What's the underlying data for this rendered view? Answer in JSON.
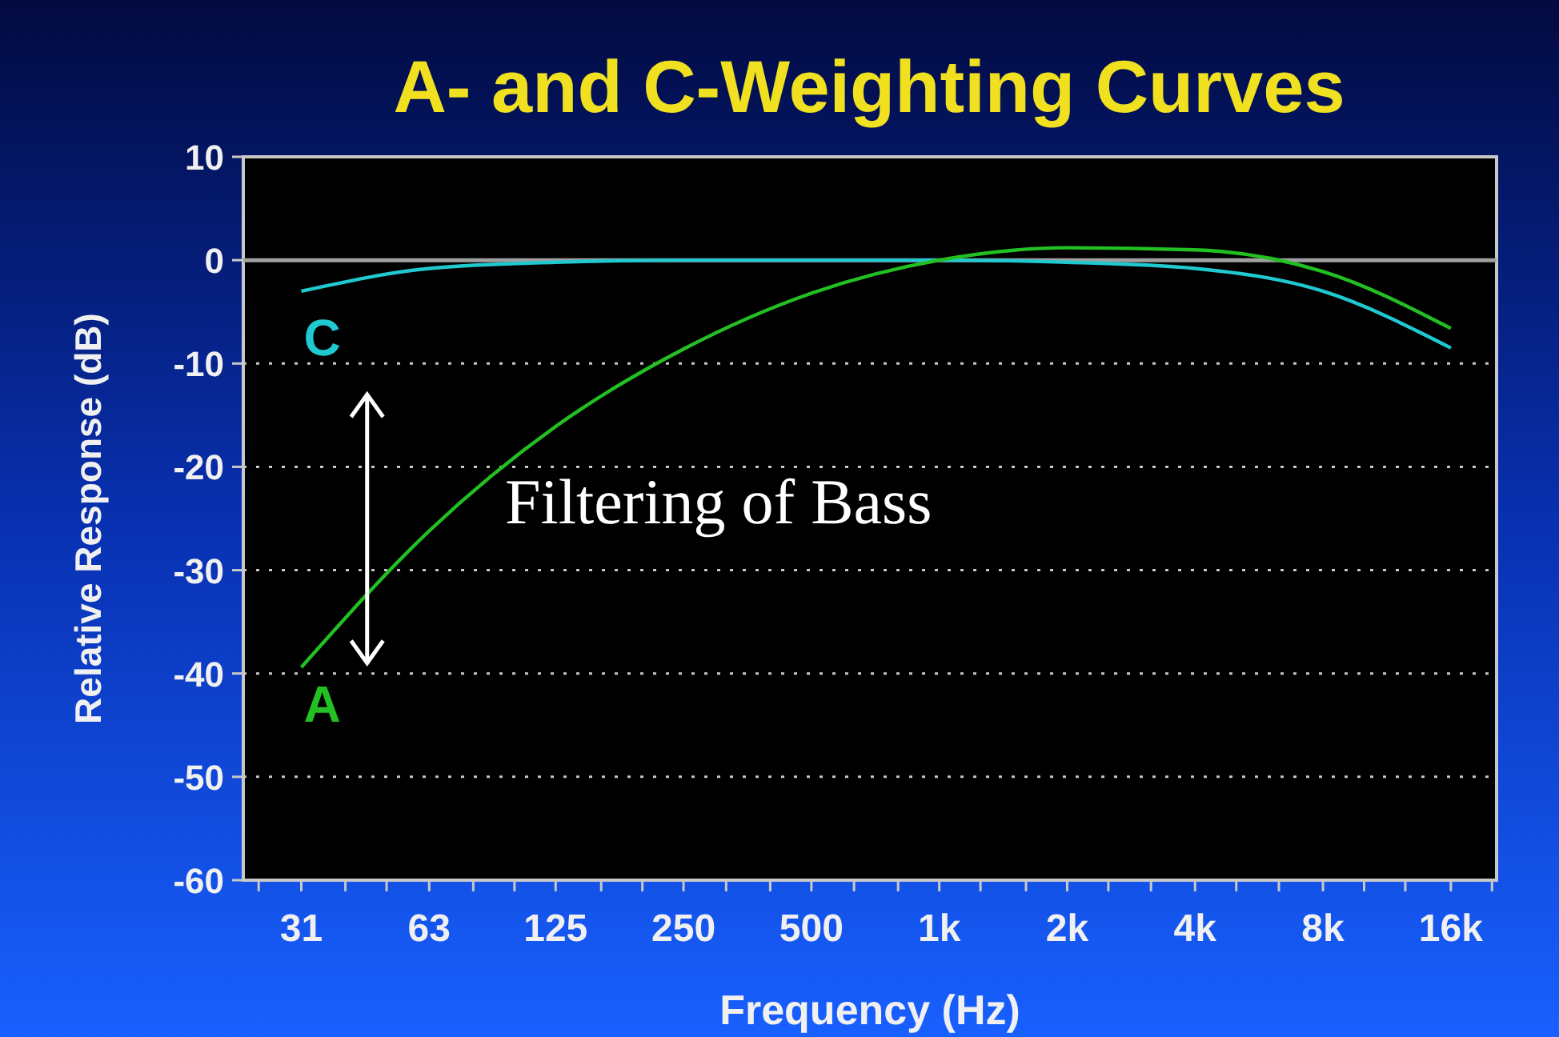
{
  "chart_data": {
    "type": "line",
    "title": "A- and C-Weighting Curves",
    "xlabel": "Frequency (Hz)",
    "ylabel": "Relative Response (dB)",
    "log": "x",
    "xlim": [
      23,
      20500
    ],
    "ylim": [
      -60,
      10
    ],
    "xticks": [
      {
        "value": 25,
        "label": null
      },
      {
        "value": 31.5,
        "label": "31"
      },
      {
        "value": 40,
        "label": null
      },
      {
        "value": 50,
        "label": null
      },
      {
        "value": 63,
        "label": "63"
      },
      {
        "value": 80,
        "label": null
      },
      {
        "value": 100,
        "label": null
      },
      {
        "value": 125,
        "label": "125"
      },
      {
        "value": 160,
        "label": null
      },
      {
        "value": 200,
        "label": null
      },
      {
        "value": 250,
        "label": "250"
      },
      {
        "value": 315,
        "label": null
      },
      {
        "value": 400,
        "label": null
      },
      {
        "value": 500,
        "label": "500"
      },
      {
        "value": 630,
        "label": null
      },
      {
        "value": 800,
        "label": null
      },
      {
        "value": 1000,
        "label": "1k"
      },
      {
        "value": 1250,
        "label": null
      },
      {
        "value": 1600,
        "label": null
      },
      {
        "value": 2000,
        "label": "2k"
      },
      {
        "value": 2500,
        "label": null
      },
      {
        "value": 3150,
        "label": null
      },
      {
        "value": 4000,
        "label": "4k"
      },
      {
        "value": 5000,
        "label": null
      },
      {
        "value": 6300,
        "label": null
      },
      {
        "value": 8000,
        "label": "8k"
      },
      {
        "value": 10000,
        "label": null
      },
      {
        "value": 12500,
        "label": null
      },
      {
        "value": 16000,
        "label": "16k"
      },
      {
        "value": 20000,
        "label": null
      }
    ],
    "yticks": [
      -60,
      -50,
      -40,
      -30,
      -20,
      -10,
      0,
      10
    ],
    "grid": "y",
    "marker": "none",
    "x": [
      31.5,
      63,
      125,
      250,
      500,
      1000,
      2000,
      4000,
      8000,
      16000
    ],
    "series": [
      {
        "name": "C",
        "color": "#20c8d0",
        "values": [
          -3,
          -0.8,
          -0.2,
          0,
          0,
          0,
          -0.2,
          -0.8,
          -3,
          -8.5
        ]
      },
      {
        "name": "A",
        "color": "#22c022",
        "values": [
          -39.4,
          -26.2,
          -16.1,
          -8.6,
          -3.2,
          0,
          1.2,
          1,
          -1.1,
          -6.6
        ]
      }
    ],
    "ref_lines": [
      {
        "axis": "y",
        "value": 0,
        "color": "#a0a0a0"
      }
    ],
    "annotations": [
      "Filtering of Bass"
    ]
  }
}
